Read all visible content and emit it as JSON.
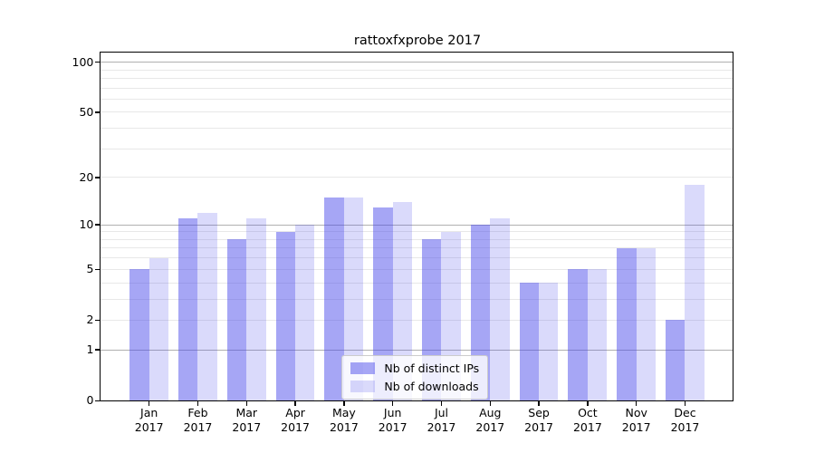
{
  "chart_data": {
    "type": "bar",
    "title": "rattoxfxprobe 2017",
    "months": [
      "Jan",
      "Feb",
      "Mar",
      "Apr",
      "May",
      "Jun",
      "Jul",
      "Aug",
      "Sep",
      "Oct",
      "Nov",
      "Dec"
    ],
    "year": "2017",
    "series": [
      {
        "name": "Nb of distinct IPs",
        "color_hex": "#a6a6f5",
        "css_color": "rgba(70,70,235,0.48)",
        "values": [
          5,
          11,
          8,
          9,
          15,
          13,
          8,
          10,
          4,
          5,
          7,
          2
        ]
      },
      {
        "name": "Nb of downloads",
        "color_hex": "#dadafb",
        "css_color": "rgba(70,70,235,0.2)",
        "values": [
          6,
          12,
          11,
          10,
          15,
          14,
          9,
          11,
          4,
          5,
          7,
          18
        ]
      }
    ],
    "y_axis": {
      "scale": "log10(1+value)",
      "tick_values": [
        0,
        1,
        2,
        5,
        10,
        20,
        50,
        100
      ],
      "major_gridlines": [
        1,
        10,
        100
      ],
      "minor_gridlines": [
        2,
        3,
        4,
        5,
        6,
        7,
        8,
        9,
        20,
        30,
        40,
        50,
        60,
        70,
        80,
        90
      ],
      "ylim": [
        0,
        113
      ]
    },
    "legend_position": "lower center",
    "grid": true,
    "colors": {
      "major_grid": "#b0b0b0",
      "minor_grid": "#e8e8e8",
      "spine": "#000000",
      "background": "#ffffff",
      "text": "#000000"
    }
  }
}
